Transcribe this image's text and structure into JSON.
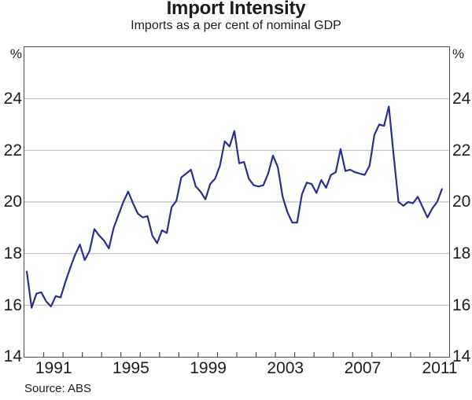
{
  "chart_data": {
    "type": "line",
    "title": "Import Intensity",
    "subtitle": "Imports as a per cent of nominal GDP",
    "unit_left": "%",
    "unit_right": "%",
    "source": "Source: ABS",
    "colors": {
      "line": "#2a2f8e",
      "gridline": "#bfbfbf",
      "frame": "#4b4b4d",
      "text": "#1c1c1c"
    },
    "x_axis": {
      "range_years": [
        1990,
        2012
      ],
      "tick_every_years": 1,
      "first_tick_year": 1991,
      "last_tick_year": 2011,
      "labeled_years": [
        "1991",
        "1995",
        "1999",
        "2003",
        "2007",
        "2011"
      ],
      "label_year_values": [
        1991,
        1995,
        1999,
        2003,
        2007,
        2011
      ]
    },
    "y_axis": {
      "range": [
        14,
        26
      ],
      "labeled_ticks": [
        14,
        16,
        18,
        20,
        22,
        24
      ],
      "gridlines": [
        16,
        18,
        20,
        22,
        24
      ],
      "grid_on": true
    },
    "series": [
      {
        "name": "Imports as a per cent of nominal GDP",
        "frequency": "quarterly",
        "start_period": "1990Q1",
        "end_period": "2011Q3",
        "start_year": 1990,
        "values": [
          17.3,
          15.9,
          16.45,
          16.5,
          16.15,
          15.95,
          16.35,
          16.3,
          16.9,
          17.45,
          17.95,
          18.35,
          17.75,
          18.1,
          18.95,
          18.7,
          18.5,
          18.2,
          19.0,
          19.5,
          20.0,
          20.4,
          19.95,
          19.55,
          19.4,
          19.45,
          18.7,
          18.4,
          18.9,
          18.8,
          19.8,
          20.05,
          20.95,
          21.1,
          21.25,
          20.6,
          20.4,
          20.1,
          20.7,
          20.9,
          21.4,
          22.35,
          22.15,
          22.75,
          21.5,
          21.55,
          20.9,
          20.65,
          20.6,
          20.65,
          21.1,
          21.8,
          21.35,
          20.2,
          19.6,
          19.2,
          19.2,
          20.3,
          20.75,
          20.7,
          20.35,
          20.85,
          20.55,
          21.05,
          21.15,
          22.05,
          21.2,
          21.25,
          21.15,
          21.1,
          21.05,
          21.4,
          22.6,
          23.0,
          22.95,
          23.7,
          21.8,
          20.0,
          19.85,
          20.0,
          19.95,
          20.2,
          19.8,
          19.4,
          19.75,
          20.0,
          20.5
        ]
      }
    ]
  }
}
